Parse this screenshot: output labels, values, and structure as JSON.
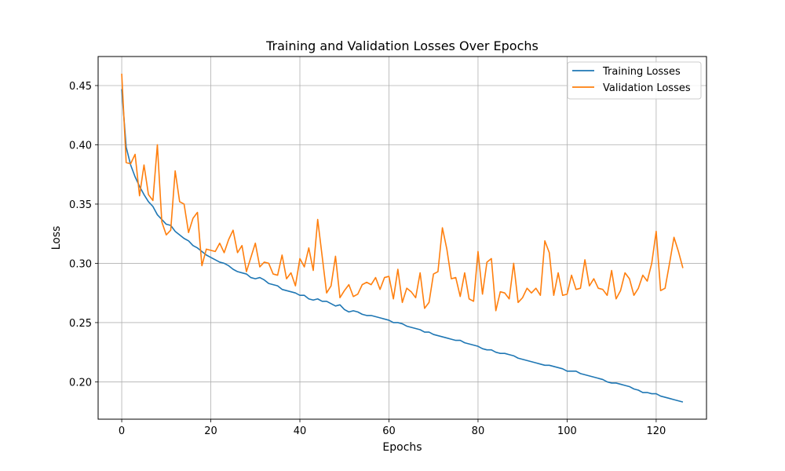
{
  "chart_data": {
    "type": "line",
    "title": "Training and Validation Losses Over Epochs",
    "xlabel": "Epochs",
    "ylabel": "Loss",
    "xlim": [
      -5.3,
      131.3
    ],
    "ylim": [
      0.1685,
      0.4745
    ],
    "xticks": [
      0,
      20,
      40,
      60,
      80,
      100,
      120
    ],
    "yticks": [
      0.2,
      0.25,
      0.3,
      0.35,
      0.4,
      0.45
    ],
    "xtick_labels": [
      "0",
      "20",
      "40",
      "60",
      "80",
      "100",
      "120"
    ],
    "ytick_labels": [
      "0.20",
      "0.25",
      "0.30",
      "0.35",
      "0.40",
      "0.45"
    ],
    "grid": true,
    "legend_position": "top-right",
    "series": [
      {
        "name": "Training Losses",
        "color": "#1f77b4",
        "values": [
          0.447,
          0.398,
          0.383,
          0.373,
          0.365,
          0.358,
          0.352,
          0.348,
          0.341,
          0.337,
          0.333,
          0.332,
          0.327,
          0.324,
          0.321,
          0.319,
          0.315,
          0.313,
          0.31,
          0.307,
          0.305,
          0.303,
          0.301,
          0.3,
          0.298,
          0.295,
          0.293,
          0.292,
          0.291,
          0.288,
          0.287,
          0.288,
          0.286,
          0.283,
          0.282,
          0.281,
          0.278,
          0.277,
          0.276,
          0.275,
          0.273,
          0.273,
          0.27,
          0.269,
          0.27,
          0.268,
          0.268,
          0.266,
          0.264,
          0.265,
          0.261,
          0.259,
          0.26,
          0.259,
          0.257,
          0.256,
          0.256,
          0.255,
          0.254,
          0.253,
          0.252,
          0.25,
          0.25,
          0.249,
          0.247,
          0.246,
          0.245,
          0.244,
          0.242,
          0.242,
          0.24,
          0.239,
          0.238,
          0.237,
          0.236,
          0.235,
          0.235,
          0.233,
          0.232,
          0.231,
          0.23,
          0.228,
          0.227,
          0.227,
          0.225,
          0.224,
          0.224,
          0.223,
          0.222,
          0.22,
          0.219,
          0.218,
          0.217,
          0.216,
          0.215,
          0.214,
          0.214,
          0.213,
          0.212,
          0.211,
          0.209,
          0.209,
          0.209,
          0.207,
          0.206,
          0.205,
          0.204,
          0.203,
          0.202,
          0.2,
          0.199,
          0.199,
          0.198,
          0.197,
          0.196,
          0.194,
          0.193,
          0.191,
          0.191,
          0.19,
          0.19,
          0.188,
          0.187,
          0.186,
          0.185,
          0.184,
          0.183
        ]
      },
      {
        "name": "Validation Losses",
        "color": "#ff7f0e",
        "values": [
          0.46,
          0.385,
          0.384,
          0.392,
          0.357,
          0.383,
          0.358,
          0.353,
          0.4,
          0.335,
          0.324,
          0.328,
          0.378,
          0.352,
          0.35,
          0.326,
          0.338,
          0.343,
          0.298,
          0.312,
          0.311,
          0.31,
          0.317,
          0.309,
          0.32,
          0.328,
          0.309,
          0.315,
          0.293,
          0.305,
          0.317,
          0.297,
          0.301,
          0.3,
          0.291,
          0.29,
          0.307,
          0.287,
          0.292,
          0.281,
          0.304,
          0.297,
          0.313,
          0.294,
          0.337,
          0.306,
          0.275,
          0.281,
          0.306,
          0.271,
          0.277,
          0.282,
          0.272,
          0.274,
          0.282,
          0.284,
          0.282,
          0.288,
          0.278,
          0.288,
          0.289,
          0.27,
          0.295,
          0.267,
          0.279,
          0.276,
          0.271,
          0.292,
          0.262,
          0.267,
          0.291,
          0.293,
          0.33,
          0.312,
          0.287,
          0.288,
          0.272,
          0.292,
          0.27,
          0.268,
          0.31,
          0.274,
          0.301,
          0.304,
          0.26,
          0.276,
          0.275,
          0.27,
          0.3,
          0.267,
          0.271,
          0.279,
          0.275,
          0.279,
          0.273,
          0.319,
          0.309,
          0.273,
          0.292,
          0.273,
          0.274,
          0.29,
          0.278,
          0.279,
          0.303,
          0.281,
          0.287,
          0.279,
          0.278,
          0.273,
          0.294,
          0.27,
          0.277,
          0.292,
          0.287,
          0.273,
          0.279,
          0.29,
          0.285,
          0.3,
          0.327,
          0.277,
          0.279,
          0.3,
          0.322,
          0.31,
          0.296
        ]
      }
    ]
  }
}
